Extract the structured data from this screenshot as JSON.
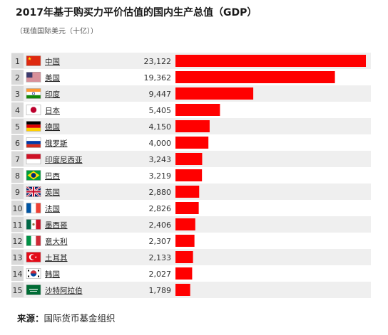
{
  "header": {
    "title": "2017年基于购买力平价估值的国内生产总值（GDP）",
    "subtitle": "（现值国际美元（十亿））"
  },
  "footer": {
    "source_label": "来源：",
    "source_text": "国际货币基金组织"
  },
  "colors": {
    "bar": "#ff0000",
    "row_odd": "#efefef",
    "row_even": "#ffffff",
    "rank_bg": "#d9d9d9"
  },
  "chart_data": {
    "type": "bar",
    "orientation": "horizontal",
    "title": "2017年基于购买力平价估值的国内生产总值（GDP）",
    "subtitle": "（现值国际美元（十亿））",
    "xlabel": "",
    "ylabel": "",
    "grid": false,
    "legend": "none",
    "xlim": [
      0,
      23122
    ],
    "ranks": [
      "1",
      "2",
      "3",
      "4",
      "5",
      "6",
      "7",
      "8",
      "9",
      "10",
      "11",
      "12",
      "13",
      "14",
      "15"
    ],
    "categories": [
      "中国",
      "美国",
      "印度",
      "日本",
      "德国",
      "俄罗斯",
      "印度尼西亚",
      "巴西",
      "英国",
      "法国",
      "墨西哥",
      "意大利",
      "土耳其",
      "韩国",
      "沙特阿拉伯"
    ],
    "flags": [
      "china-flag",
      "usa-flag",
      "india-flag",
      "japan-flag",
      "germany-flag",
      "russia-flag",
      "indonesia-flag",
      "brazil-flag",
      "uk-flag",
      "france-flag",
      "mexico-flag",
      "italy-flag",
      "turkey-flag",
      "south-korea-flag",
      "saudi-arabia-flag"
    ],
    "value_labels": [
      "23,122",
      "19,362",
      "9,447",
      "5,405",
      "4,150",
      "4,000",
      "3,243",
      "3,219",
      "2,880",
      "2,826",
      "2,406",
      "2,307",
      "2,133",
      "2,027",
      "1,789"
    ],
    "values": [
      23122,
      19362,
      9447,
      5405,
      4150,
      4000,
      3243,
      3219,
      2880,
      2826,
      2406,
      2307,
      2133,
      2027,
      1789
    ]
  }
}
